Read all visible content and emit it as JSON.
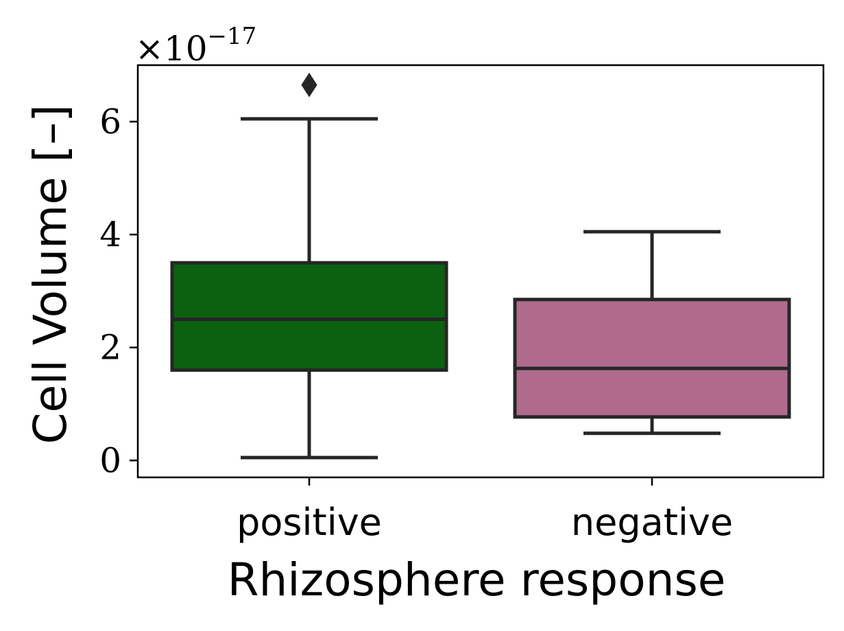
{
  "chart_data": {
    "type": "box",
    "xlabel": "Rhizosphere response",
    "ylabel": "Cell Volume [–]",
    "y_offset_label": {
      "base": "×10",
      "exponent": "−17"
    },
    "yticks": [
      0,
      2,
      4,
      6
    ],
    "ytick_labels": [
      "0",
      "2",
      "4",
      "6"
    ],
    "ylim": [
      -0.3,
      7.0
    ],
    "categories": [
      "positive",
      "negative"
    ],
    "boxes": [
      {
        "category": "positive",
        "whisker_low": 0.05,
        "q1": 1.6,
        "median": 2.5,
        "q3": 3.5,
        "whisker_high": 6.05,
        "outliers": [
          6.65
        ],
        "color": "#0b6110"
      },
      {
        "category": "negative",
        "whisker_low": 0.48,
        "q1": 0.77,
        "median": 1.63,
        "q3": 2.85,
        "whisker_high": 4.05,
        "outliers": [],
        "color": "#b06b8c"
      }
    ],
    "grid": false,
    "line_color": "#262626"
  }
}
